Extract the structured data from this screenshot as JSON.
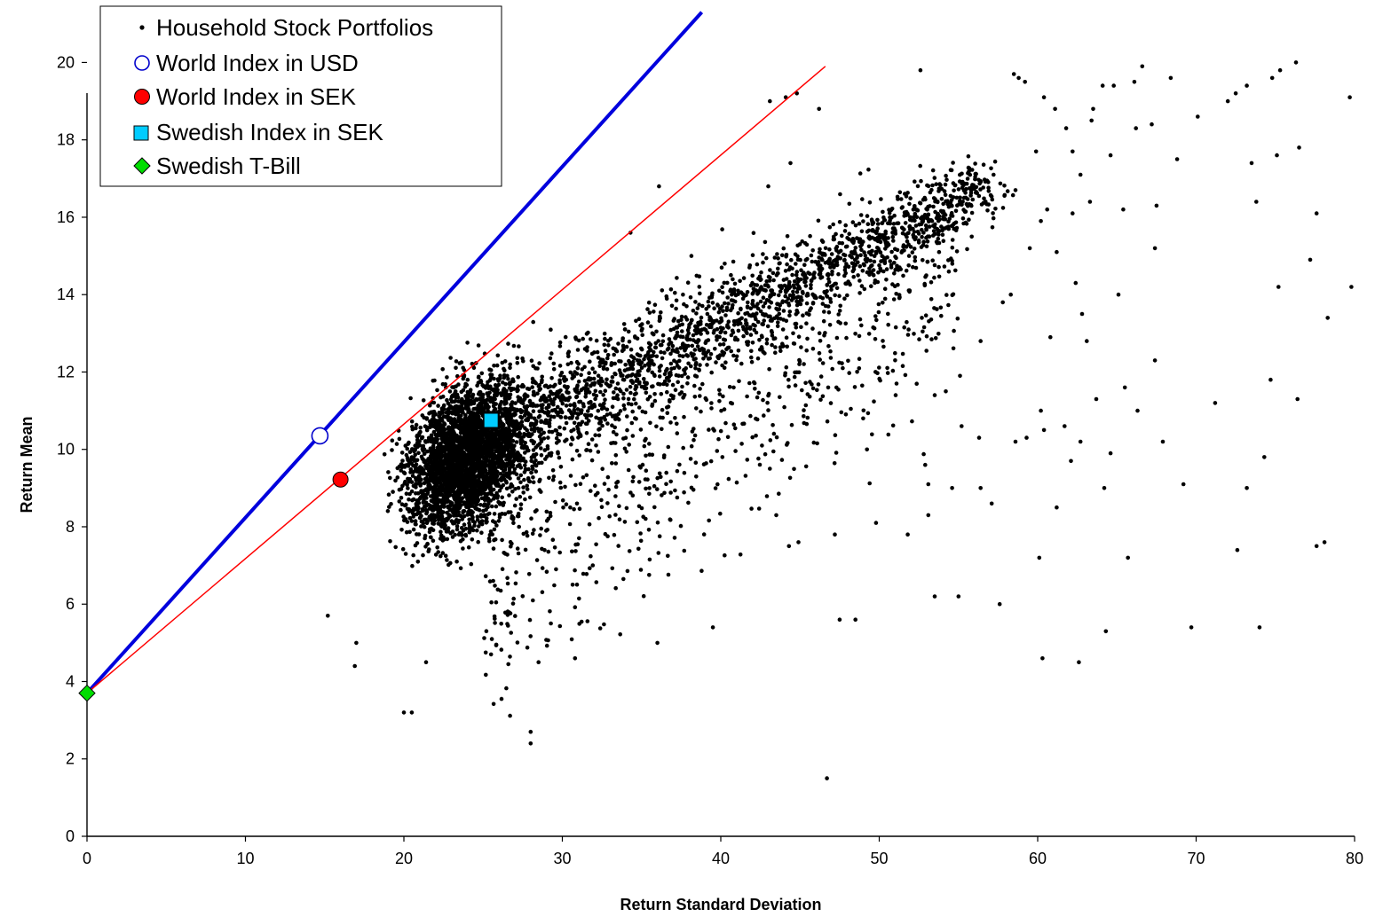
{
  "chart_data": {
    "type": "scatter",
    "xlabel": "Return Standard Deviation",
    "ylabel": "Return Mean",
    "xlim": [
      0,
      80
    ],
    "ylim": [
      0,
      21.5
    ],
    "x_ticks": [
      0,
      10,
      20,
      30,
      40,
      50,
      60,
      70,
      80
    ],
    "y_ticks": [
      0,
      2,
      4,
      6,
      8,
      10,
      12,
      14,
      16,
      18,
      20
    ],
    "x_tick_labels": [
      "0",
      "10",
      "20",
      "30",
      "40",
      "50",
      "60",
      "70",
      "80"
    ],
    "y_tick_labels": [
      "0",
      "2",
      "4",
      "6",
      "8",
      "10",
      "12",
      "14",
      "16",
      "18",
      "20"
    ],
    "grid": false,
    "legend_position": "top-left",
    "legend": [
      {
        "label": "Household Stock Portfolios",
        "marker": "small-dot",
        "color": "#000000"
      },
      {
        "label": "World Index in USD",
        "marker": "open-circle",
        "color": "#0000cc"
      },
      {
        "label": "World Index in SEK",
        "marker": "filled-circle",
        "color": "#ff0000"
      },
      {
        "label": "Swedish Index in SEK",
        "marker": "square",
        "color": "#00ccff"
      },
      {
        "label": "Swedish T-Bill",
        "marker": "diamond",
        "color": "#00cc00"
      }
    ],
    "household_portfolios": {
      "name": "Household Stock Portfolios",
      "approx_count": 6000,
      "main_cluster_center": [
        24,
        9.8
      ],
      "trend_line_from": [
        22,
        9.5
      ],
      "trend_line_to": [
        57,
        16.8
      ],
      "x_range": [
        15,
        80
      ],
      "y_range": [
        1.5,
        20
      ],
      "sample_points": [
        [
          15.2,
          5.7
        ],
        [
          16.9,
          4.4
        ],
        [
          17,
          5
        ],
        [
          20,
          3.2
        ],
        [
          20.5,
          3.2
        ],
        [
          21.4,
          4.5
        ],
        [
          25.5,
          4.7
        ],
        [
          28,
          2.7
        ],
        [
          28,
          2.4
        ],
        [
          28.5,
          4.5
        ],
        [
          30.8,
          4.6
        ],
        [
          36,
          5
        ],
        [
          39.5,
          5.4
        ],
        [
          46.7,
          1.5
        ],
        [
          47.5,
          5.6
        ],
        [
          48.5,
          5.6
        ],
        [
          53.5,
          6.2
        ],
        [
          55,
          6.2
        ],
        [
          57.6,
          6
        ],
        [
          60.3,
          4.6
        ],
        [
          62.6,
          4.5
        ],
        [
          64.3,
          5.3
        ],
        [
          69.7,
          5.4
        ],
        [
          74,
          5.4
        ],
        [
          77.6,
          7.5
        ],
        [
          78.1,
          7.6
        ],
        [
          79.8,
          14.2
        ],
        [
          79.7,
          19.1
        ],
        [
          76.3,
          20
        ],
        [
          76.5,
          17.8
        ],
        [
          77.6,
          16.1
        ],
        [
          66.6,
          19.9
        ],
        [
          68.4,
          19.6
        ],
        [
          70.1,
          18.6
        ],
        [
          52.6,
          19.8
        ],
        [
          46.2,
          18.8
        ],
        [
          44.4,
          17.4
        ],
        [
          44.1,
          19.1
        ],
        [
          44.8,
          19.2
        ],
        [
          43,
          16.8
        ],
        [
          43.1,
          19.0
        ],
        [
          34.3,
          15.6
        ],
        [
          36.1,
          16.8
        ],
        [
          58.5,
          19.7
        ],
        [
          58.8,
          19.6
        ],
        [
          59.2,
          19.5
        ],
        [
          60.4,
          19.1
        ],
        [
          61.1,
          18.8
        ],
        [
          62.2,
          17.7
        ],
        [
          63.5,
          18.8
        ],
        [
          64.1,
          19.4
        ],
        [
          64.8,
          19.4
        ],
        [
          66.1,
          19.5
        ],
        [
          67.2,
          18.4
        ],
        [
          68.8,
          17.5
        ],
        [
          72,
          19.0
        ],
        [
          72.5,
          19.2
        ],
        [
          73.2,
          19.4
        ],
        [
          74.8,
          19.6
        ],
        [
          75.3,
          19.8
        ],
        [
          73.5,
          17.4
        ],
        [
          75.1,
          17.6
        ],
        [
          73.8,
          16.4
        ],
        [
          77.2,
          14.9
        ],
        [
          75.2,
          14.2
        ],
        [
          78.3,
          13.4
        ],
        [
          71.2,
          11.2
        ],
        [
          74.7,
          11.8
        ],
        [
          76.4,
          11.3
        ],
        [
          69.2,
          9.1
        ],
        [
          74.3,
          9.8
        ],
        [
          73.2,
          9.0
        ],
        [
          67.9,
          10.2
        ],
        [
          64.6,
          9.9
        ],
        [
          67.4,
          12.3
        ],
        [
          65.5,
          11.6
        ],
        [
          63.1,
          12.8
        ],
        [
          60.8,
          12.9
        ],
        [
          62.4,
          14.3
        ],
        [
          61.2,
          15.1
        ],
        [
          60.2,
          15.9
        ],
        [
          59.5,
          15.2
        ],
        [
          58.3,
          14.0
        ],
        [
          57.8,
          13.8
        ],
        [
          56.4,
          12.8
        ],
        [
          55.2,
          10.6
        ],
        [
          56.3,
          10.3
        ],
        [
          58.6,
          10.2
        ],
        [
          59.3,
          10.3
        ],
        [
          60.4,
          10.5
        ],
        [
          61.7,
          10.6
        ],
        [
          62.7,
          10.2
        ],
        [
          57.1,
          8.6
        ],
        [
          56.4,
          9.0
        ],
        [
          54.6,
          9.0
        ],
        [
          52.9,
          9.6
        ],
        [
          53.1,
          9.1
        ],
        [
          53.1,
          8.3
        ],
        [
          47.2,
          7.8
        ],
        [
          44.9,
          7.6
        ],
        [
          44.3,
          7.5
        ],
        [
          43.5,
          8.3
        ],
        [
          43.1,
          9.5
        ],
        [
          49.8,
          8.1
        ],
        [
          51.8,
          7.8
        ],
        [
          60.1,
          7.2
        ],
        [
          65.7,
          7.2
        ],
        [
          61.2,
          8.5
        ],
        [
          62.1,
          9.7
        ],
        [
          64.2,
          9.0
        ],
        [
          72.6,
          7.4
        ],
        [
          53.5,
          11.4
        ],
        [
          54.2,
          11.5
        ],
        [
          55.1,
          11.9
        ],
        [
          60.2,
          11.0
        ],
        [
          63.7,
          11.3
        ],
        [
          66.3,
          11.0
        ],
        [
          62.8,
          13.5
        ],
        [
          65.1,
          14.0
        ],
        [
          65.4,
          16.2
        ],
        [
          63.3,
          16.4
        ],
        [
          62.2,
          16.1
        ],
        [
          60.6,
          16.2
        ],
        [
          58.6,
          16.7
        ],
        [
          59.9,
          17.7
        ],
        [
          61.8,
          18.3
        ],
        [
          63.4,
          18.5
        ],
        [
          64.6,
          17.6
        ],
        [
          66.2,
          18.3
        ],
        [
          67.5,
          16.3
        ],
        [
          67.4,
          15.2
        ],
        [
          62.7,
          17.1
        ],
        [
          47.7,
          12.1
        ],
        [
          42.6,
          12.6
        ],
        [
          40.1,
          9.8
        ]
      ]
    },
    "world_index_usd": {
      "name": "World Index in USD",
      "x": 14.7,
      "y": 10.35
    },
    "world_index_sek": {
      "name": "World Index in SEK",
      "x": 16.0,
      "y": 9.22
    },
    "swedish_index_sek": {
      "name": "Swedish Index in SEK",
      "x": 25.5,
      "y": 10.75
    },
    "swedish_tbill": {
      "name": "Swedish T-Bill",
      "x": 0.0,
      "y": 3.7
    },
    "lines": [
      {
        "from_point": "Swedish T-Bill",
        "through_point": "World Index in USD",
        "color": "#0000dd",
        "x_end": 38.8,
        "y_end": 21.3
      },
      {
        "from_point": "Swedish T-Bill",
        "through_point": "World Index in SEK",
        "color": "#ff0000",
        "x_end": 46.6,
        "y_end": 19.9
      }
    ]
  }
}
